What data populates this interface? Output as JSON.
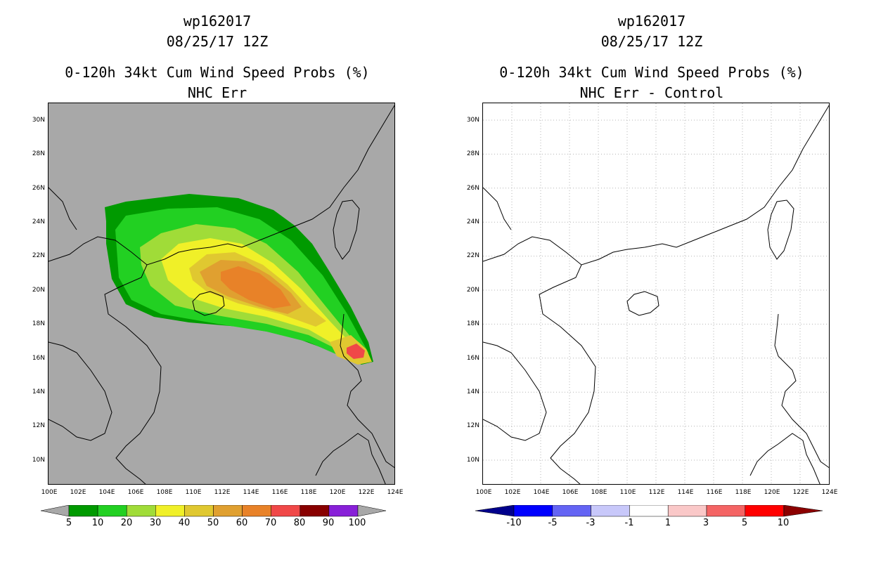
{
  "panels": [
    {
      "storm_id": "wp162017",
      "datetime": "08/25/17 12Z",
      "product": "0-120h 34kt Cum Wind Speed Probs (%)",
      "subtitle": "NHC Err",
      "background_color": "#a8a8a8",
      "colorbar": {
        "labels": [
          "5",
          "10",
          "20",
          "30",
          "40",
          "50",
          "60",
          "70",
          "80",
          "90",
          "100"
        ],
        "colors": [
          "#009a00",
          "#22d022",
          "#a0dc38",
          "#f0f028",
          "#e0c830",
          "#e0a030",
          "#e88228",
          "#f04848",
          "#880000",
          "#8820d8"
        ],
        "end_color": "#a8a8a8"
      }
    },
    {
      "storm_id": "wp162017",
      "datetime": "08/25/17 12Z",
      "product": "0-120h 34kt Cum Wind Speed Probs (%)",
      "subtitle": "NHC Err - Control",
      "background_color": "#ffffff",
      "colorbar": {
        "labels": [
          "-10",
          "-5",
          "-3",
          "-1",
          "1",
          "3",
          "5",
          "10"
        ],
        "colors": [
          "#0000ff",
          "#6464f4",
          "#c8c8fa",
          "#ffffff",
          "#fac8c8",
          "#f46464",
          "#ff0000"
        ],
        "end_left": "#00008c",
        "end_right": "#8c0000"
      }
    }
  ],
  "lat_labels": [
    "30N",
    "28N",
    "26N",
    "24N",
    "22N",
    "20N",
    "18N",
    "16N",
    "14N",
    "12N",
    "10N"
  ],
  "lon_labels": [
    "100E",
    "102E",
    "104E",
    "106E",
    "108E",
    "110E",
    "112E",
    "114E",
    "116E",
    "118E",
    "120E",
    "122E",
    "124E"
  ]
}
